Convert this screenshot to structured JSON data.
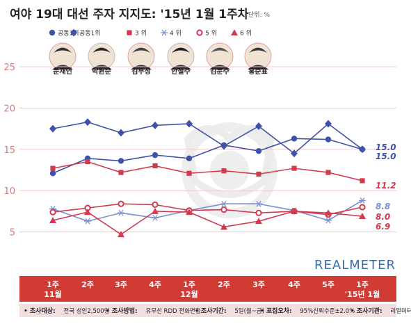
{
  "title": "여야 19대 대선 주자 지지도: '15년 1월 1주차",
  "unit": "단위: %",
  "watermark": "REALMETER",
  "legend": [
    {
      "rank": "공동1위",
      "marker": "circle",
      "color": "#3f51a8"
    },
    {
      "rank": "공동1위",
      "marker": "diamond",
      "color": "#3f51a8"
    },
    {
      "rank": "3 위",
      "marker": "square",
      "color": "#d23a4f"
    },
    {
      "rank": "4 위",
      "marker": "asterisk",
      "color": "#7b8fd0"
    },
    {
      "rank": "5 위",
      "marker": "ring",
      "color": "#d23a4f"
    },
    {
      "rank": "6 위",
      "marker": "triangle",
      "color": "#d23a4f"
    }
  ],
  "candidates": [
    "문재인",
    "박원순",
    "김무성",
    "안철수",
    "김문수",
    "홍준표"
  ],
  "footer": [
    {
      "key": "• 조사대상:",
      "text": "전국 성인2,500명"
    },
    {
      "key": "• 조사방법:",
      "text": "유무선 RDD 전화면접"
    },
    {
      "key": "• 조사기간:",
      "text": "5일(월~금)"
    },
    {
      "key": "• 표집오차:",
      "text": "95%신뢰수준±2.0%"
    },
    {
      "key": "• 조사기관:",
      "text": "리얼미터"
    }
  ],
  "chart_data": {
    "type": "line",
    "categories": [
      "1주\n11월",
      "2주",
      "3주",
      "4주",
      "1주\n12월",
      "2주",
      "3주",
      "4주",
      "5주",
      "1주\n'15년 1월"
    ],
    "ylim": [
      0,
      25
    ],
    "yticks": [
      5,
      10,
      15,
      20,
      25
    ],
    "series": [
      {
        "marker": "circle",
        "color": "#3f51a8",
        "values": [
          12.1,
          13.9,
          13.6,
          14.3,
          13.9,
          15.5,
          14.8,
          16.3,
          16.2,
          15.0
        ],
        "end_label": "15.0"
      },
      {
        "marker": "diamond",
        "color": "#3f51a8",
        "values": [
          17.5,
          18.3,
          17.0,
          17.9,
          18.1,
          15.4,
          17.8,
          14.5,
          18.1,
          15.0
        ],
        "end_label": "15.0"
      },
      {
        "marker": "square",
        "color": "#d23a4f",
        "values": [
          12.7,
          13.5,
          12.2,
          13.0,
          12.1,
          12.4,
          12.0,
          12.7,
          12.2,
          11.2
        ],
        "end_label": "11.2"
      },
      {
        "marker": "asterisk",
        "color": "#7b8fd0",
        "values": [
          7.8,
          6.3,
          7.3,
          6.7,
          7.6,
          8.4,
          8.4,
          7.6,
          6.4,
          8.8
        ],
        "end_label": "8.8"
      },
      {
        "marker": "ring",
        "color": "#d23a4f",
        "values": [
          7.4,
          7.9,
          8.4,
          8.3,
          7.6,
          7.7,
          7.3,
          7.5,
          7.1,
          8.0
        ],
        "end_label": "8.0"
      },
      {
        "marker": "triangle",
        "color": "#d23a4f",
        "values": [
          6.4,
          7.4,
          4.7,
          7.5,
          7.4,
          5.6,
          6.3,
          7.5,
          7.3,
          6.9
        ],
        "end_label": "6.9"
      }
    ]
  }
}
